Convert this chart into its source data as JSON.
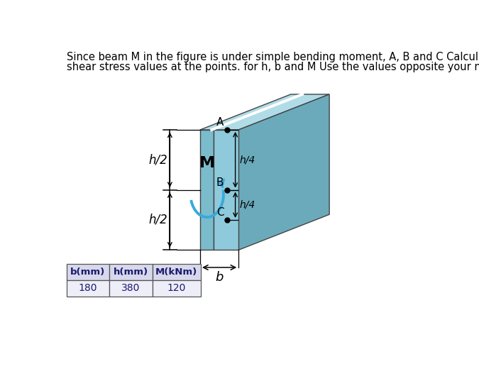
{
  "title_text_line1": "Since beam M in the figure is under simple bending moment, A, B and C Calculate the bending stress and",
  "title_text_line2": "shear stress values at the points. for h, b and M Use the values opposite your name in the table below.",
  "title_fontsize": 10.5,
  "table_headers": [
    "b(mm)",
    "h(mm)",
    "M(kNm)"
  ],
  "table_values": [
    "180",
    "380",
    "120"
  ],
  "bg_color": "#ffffff",
  "beam_front_left_color": "#7abccc",
  "beam_front_right_color": "#8ecadb",
  "beam_top_color": "#b0dce8",
  "beam_right_color": "#6aaabb",
  "beam_edge_color": "#444444",
  "moment_arrow_color": "#38aadd",
  "label_M": "M",
  "label_A": "A",
  "label_B": "B",
  "label_C": "C",
  "label_h2_top": "h/2",
  "label_h2_bot": "h/2",
  "label_h4_top": "h/4",
  "label_h4_bot": "h/4",
  "label_b": "b",
  "header_bg": "#d8d8ec",
  "val_bg": "#eeeef8",
  "table_edge": "#555555",
  "dim_line_color": "#000000",
  "beam_fx0": 2.55,
  "beam_fy0": 1.55,
  "beam_fw": 0.7,
  "beam_fh": 2.2,
  "beam_ox": 1.65,
  "beam_oy": 0.65
}
